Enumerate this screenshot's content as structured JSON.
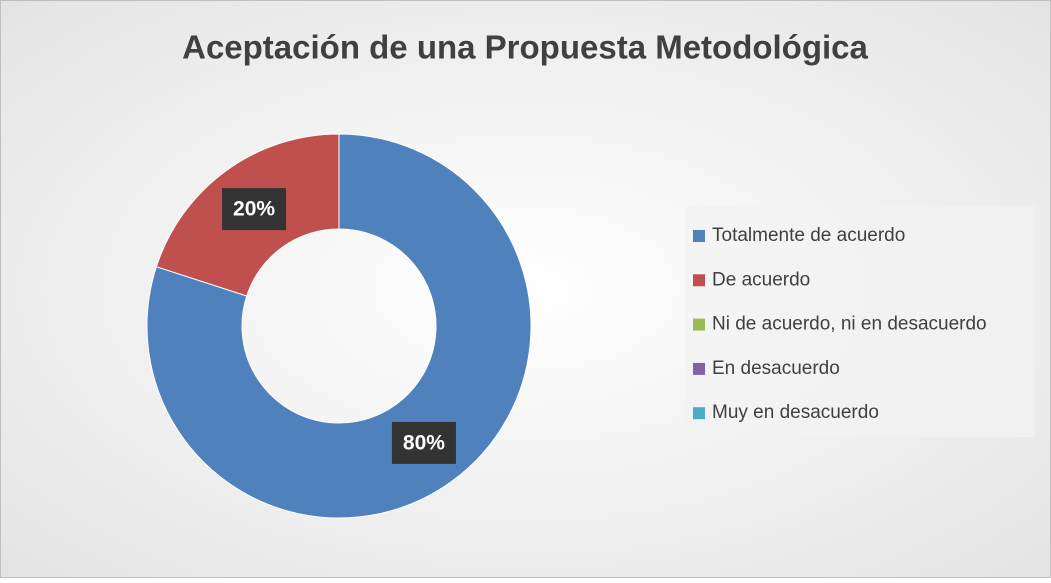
{
  "chart_data": {
    "type": "donut",
    "title": "Aceptación de una Propuesta Metodológica",
    "categories": [
      "Totalmente de acuerdo",
      "De acuerdo",
      "Ni de acuerdo, ni en desacuerdo",
      "En desacuerdo",
      "Muy en desacuerdo"
    ],
    "values": [
      80,
      20,
      0,
      0,
      0
    ],
    "value_labels": [
      "80%",
      "20%",
      null,
      null,
      null
    ],
    "colors": [
      "#4f81bd",
      "#c0504d",
      "#9bbb59",
      "#8064a2",
      "#4bacc6"
    ],
    "legend": "right"
  }
}
